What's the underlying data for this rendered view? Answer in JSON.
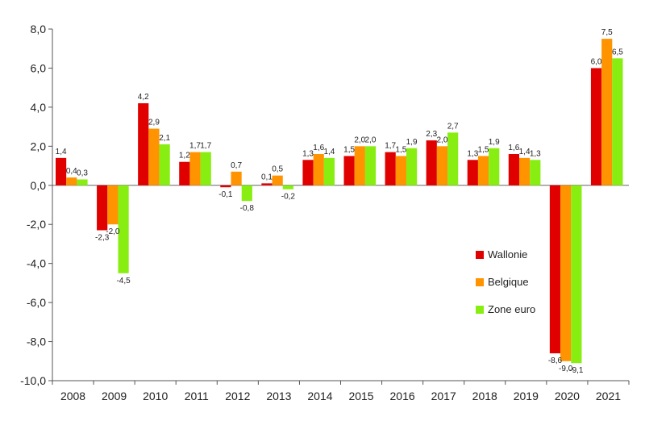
{
  "chart_data": {
    "type": "bar",
    "title": "",
    "xlabel": "",
    "ylabel": "",
    "ylim": [
      -10,
      8
    ],
    "yticks": [
      8,
      6,
      4,
      2,
      0,
      -2,
      -4,
      -6,
      -8,
      -10
    ],
    "ytick_labels": [
      "8,0",
      "6,0",
      "4,0",
      "2,0",
      "0,0",
      "-2,0",
      "-4,0",
      "-6,0",
      "-8,0",
      "-10,0"
    ],
    "grid": false,
    "legend_position": "right",
    "categories": [
      "2008",
      "2009",
      "2010",
      "2011",
      "2012",
      "2013",
      "2014",
      "2015",
      "2016",
      "2017",
      "2018",
      "2019",
      "2020",
      "2021"
    ],
    "series": [
      {
        "name": "Wallonie",
        "color": "#e00000",
        "values": [
          1.4,
          -2.3,
          4.2,
          1.2,
          -0.1,
          0.1,
          1.3,
          1.5,
          1.7,
          2.3,
          1.3,
          1.6,
          -8.6,
          6.0
        ],
        "labels": [
          "1,4",
          "-2,3",
          "4,2",
          "1,2",
          "-0,1",
          "0,1",
          "1,3",
          "1,5",
          "1,7",
          "2,3",
          "1,3",
          "1,6",
          "-8,6",
          "6,0"
        ]
      },
      {
        "name": "Belgique",
        "color": "#ff9300",
        "values": [
          0.4,
          -2.0,
          2.9,
          1.7,
          0.7,
          0.5,
          1.6,
          2.0,
          1.5,
          2.0,
          1.5,
          1.4,
          -9.0,
          7.5
        ],
        "labels": [
          "0,4",
          "-2,0",
          "2,9",
          "1,7",
          "0,7",
          "0,5",
          "1,6",
          "2,0",
          "1,5",
          "2,0",
          "1,5",
          "1,4",
          "-9,0",
          "7,5"
        ]
      },
      {
        "name": "Zone euro",
        "color": "#88ee11",
        "values": [
          0.3,
          -4.5,
          2.1,
          1.7,
          -0.8,
          -0.2,
          1.4,
          2.0,
          1.9,
          2.7,
          1.9,
          1.3,
          -9.1,
          6.5
        ],
        "labels": [
          "0,3",
          "-4,5",
          "2,1",
          "1,7",
          "-0,8",
          "-0,2",
          "1,4",
          "2,0",
          "1,9",
          "2,7",
          "1,9",
          "1,3",
          "-9,1",
          "6,5"
        ]
      }
    ]
  }
}
